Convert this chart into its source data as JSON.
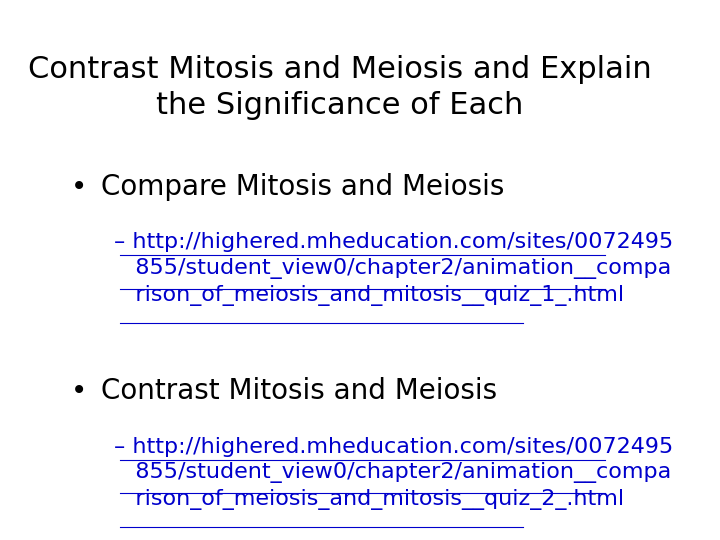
{
  "background_color": "#ffffff",
  "title_line1": "Contrast Mitosis and Meiosis and Explain",
  "title_line2": "the Significance of Each",
  "title_fontsize": 22,
  "title_color": "#000000",
  "title_font": "DejaVu Sans",
  "bullet1_text": "Compare Mitosis and Meiosis",
  "bullet1_fontsize": 20,
  "bullet1_color": "#000000",
  "sub1_line1": "http://highered.mheducation.com/sites/0072495",
  "sub1_line2": "855/student_view0/chapter2/animation__compa",
  "sub1_line3": "rison_of_meiosis_and_mitosis__quiz_1_.html",
  "bullet2_text": "Contrast Mitosis and Meiosis",
  "bullet2_fontsize": 20,
  "bullet2_color": "#000000",
  "sub2_line1": "http://highered.mheducation.com/sites/0072495",
  "sub2_line2": "855/student_view0/chapter2/animation__compa",
  "sub2_line3": "rison_of_meiosis_and_mitosis__quiz_2_.html",
  "sub_fontsize": 16,
  "sub_color": "#0000cc",
  "dash_text": "– ",
  "bullet_char": "•"
}
